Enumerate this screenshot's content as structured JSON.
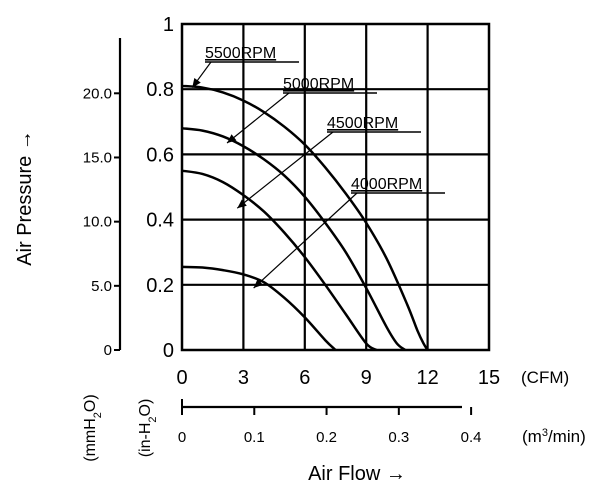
{
  "chart_data": {
    "type": "line",
    "xlabel": "Air Flow →",
    "ylabel": "Air Pressure →",
    "x_unit": "(CFM)",
    "x2_unit_base": "(m",
    "x2_unit_sup": "3",
    "x2_unit_tail": "/min)",
    "y_left_unit_base": "(mmH",
    "y_left_unit_sub": "2",
    "y_left_unit_tail": "O)",
    "y_right_unit_base": "(in-H",
    "y_right_unit_sub": "2",
    "y_right_unit_tail": "O)",
    "xlim": [
      0,
      15
    ],
    "ylim": [
      0,
      1
    ],
    "grid": true,
    "x_ticks": [
      "0",
      "3",
      "6",
      "9",
      "12",
      "15"
    ],
    "y_ticks": [
      "0",
      "0.2",
      "0.4",
      "0.6",
      "0.8",
      "1"
    ],
    "mm_ticks": [
      "0",
      "5.0",
      "10.0",
      "15.0",
      "20.0"
    ],
    "m3_ticks": [
      "0",
      "0.1",
      "0.2",
      "0.3",
      "0.4"
    ],
    "series": [
      {
        "name": "5500RPM",
        "x": [
          0,
          1,
          2,
          3,
          4,
          5,
          6,
          7,
          8,
          9,
          10,
          11,
          11.5,
          11.8,
          12.0
        ],
        "y": [
          0.81,
          0.805,
          0.79,
          0.765,
          0.73,
          0.685,
          0.63,
          0.56,
          0.48,
          0.39,
          0.28,
          0.14,
          0.06,
          0.02,
          0
        ]
      },
      {
        "name": "5000RPM",
        "x": [
          0,
          1,
          2,
          3,
          4,
          5,
          6,
          7,
          8,
          9,
          10,
          10.5,
          10.9
        ],
        "y": [
          0.68,
          0.673,
          0.655,
          0.625,
          0.585,
          0.535,
          0.47,
          0.39,
          0.3,
          0.19,
          0.07,
          0.02,
          0
        ]
      },
      {
        "name": "4500RPM",
        "x": [
          0,
          1,
          2,
          3,
          4,
          5,
          6,
          7,
          8,
          9,
          9.5
        ],
        "y": [
          0.55,
          0.54,
          0.515,
          0.475,
          0.425,
          0.36,
          0.285,
          0.2,
          0.11,
          0.02,
          0
        ]
      },
      {
        "name": "4000RPM",
        "x": [
          0,
          1,
          2,
          3,
          4,
          5,
          6,
          7,
          7.5
        ],
        "y": [
          0.255,
          0.253,
          0.245,
          0.232,
          0.208,
          0.16,
          0.1,
          0.03,
          0
        ]
      }
    ],
    "labels": [
      {
        "series": "5500RPM",
        "text": "5500RPM",
        "at": [
          0.5,
          0.805
        ]
      },
      {
        "series": "5000RPM",
        "text": "5000RPM",
        "at": [
          2.2,
          0.635
        ]
      },
      {
        "series": "4500RPM",
        "text": "4500RPM",
        "at": [
          2.7,
          0.435
        ]
      },
      {
        "series": "4000RPM",
        "text": "4000RPM",
        "at": [
          3.5,
          0.19
        ]
      }
    ]
  }
}
